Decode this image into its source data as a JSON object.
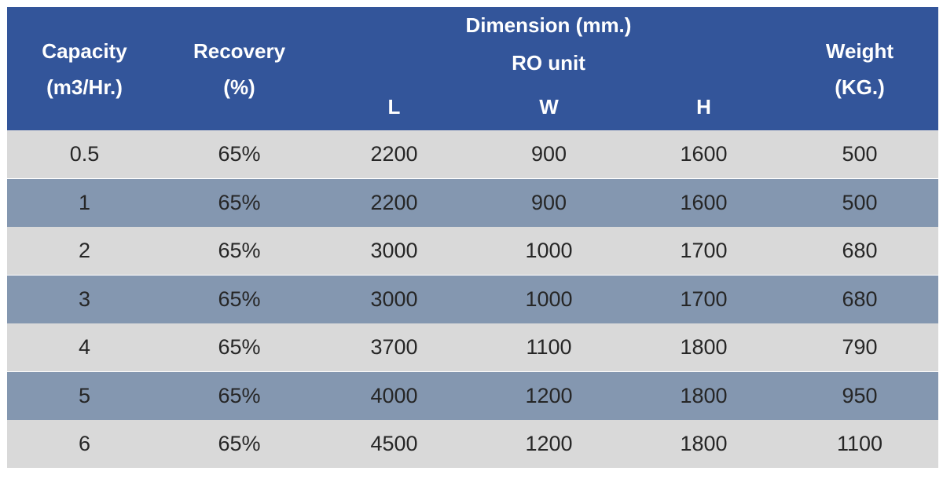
{
  "header": {
    "capacity": [
      "Capacity",
      "(m3/Hr.)"
    ],
    "recovery": [
      "Recovery",
      "(%)"
    ],
    "dimension": "Dimension (mm.)",
    "ro_unit": "RO unit",
    "dim_cols": [
      "L",
      "W",
      "H"
    ],
    "weight": [
      "Weight",
      "(KG.)"
    ]
  },
  "rows": [
    [
      "0.5",
      "65%",
      "2200",
      "900",
      "1600",
      "500"
    ],
    [
      "1",
      "65%",
      "2200",
      "900",
      "1600",
      "500"
    ],
    [
      "2",
      "65%",
      "3000",
      "1000",
      "1700",
      "680"
    ],
    [
      "3",
      "65%",
      "3000",
      "1000",
      "1700",
      "680"
    ],
    [
      "4",
      "65%",
      "3700",
      "1100",
      "1800",
      "790"
    ],
    [
      "5",
      "65%",
      "4000",
      "1200",
      "1800",
      "950"
    ],
    [
      "6",
      "65%",
      "4500",
      "1200",
      "1800",
      "1100"
    ]
  ],
  "colors": {
    "header_bg": "#33559a",
    "row_light": "#d9d9d9",
    "row_dark": "#8497b0"
  }
}
